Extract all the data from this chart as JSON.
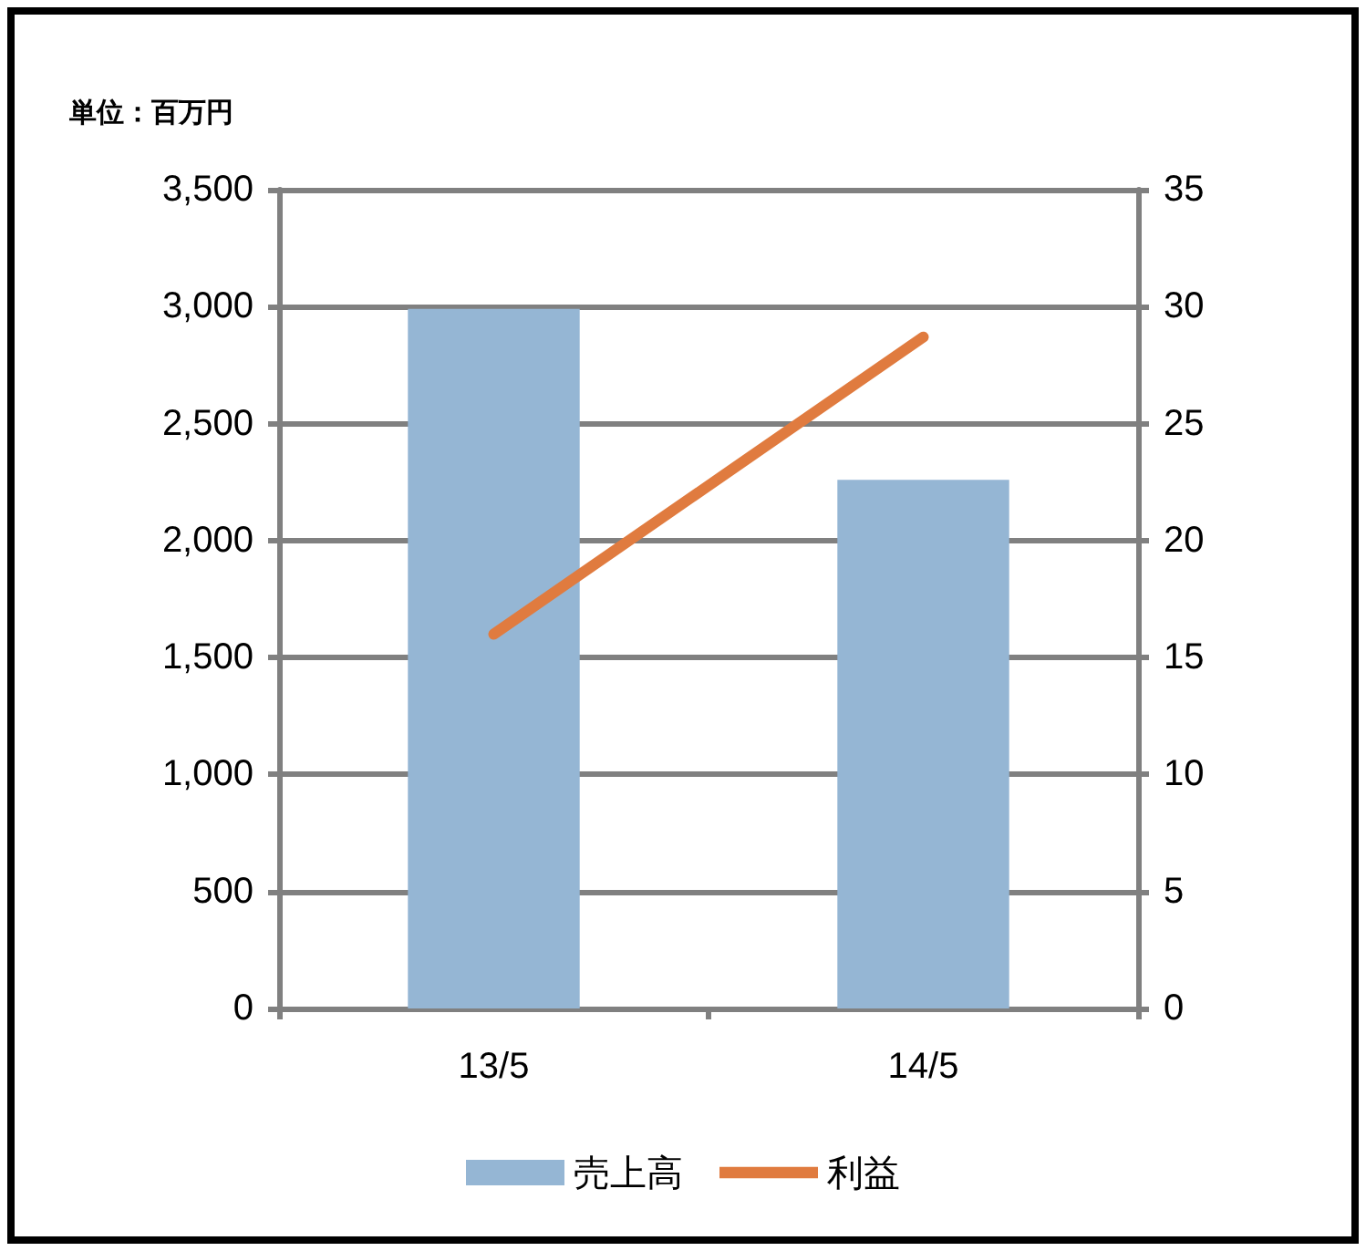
{
  "chart_data": {
    "type": "bar",
    "ylabel": "単位：百万円",
    "categories": [
      "13/5",
      "14/5"
    ],
    "series": [
      {
        "name": "売上高",
        "color": "#95b6d4",
        "values": [
          2990,
          2260
        ]
      },
      {
        "name": "利益",
        "type": "line",
        "axis": "y2",
        "color": "#e07b3f",
        "values": [
          16,
          28.7
        ]
      }
    ],
    "ylim": [
      0,
      3500
    ],
    "yticks": [
      {
        "value": 0,
        "label": "0"
      },
      {
        "value": 500,
        "label": "500"
      },
      {
        "value": 1000,
        "label": "1,000"
      },
      {
        "value": 1500,
        "label": "1,500"
      },
      {
        "value": 2000,
        "label": "2,000"
      },
      {
        "value": 2500,
        "label": "2,500"
      },
      {
        "value": 3000,
        "label": "3,000"
      },
      {
        "value": 3500,
        "label": "3,500"
      }
    ],
    "y2lim": [
      0,
      35
    ],
    "y2ticks": [
      0,
      5,
      10,
      15,
      20,
      25,
      30,
      35
    ],
    "grid": "y",
    "legend": "bottom",
    "marker": "none",
    "line_style": "solid"
  }
}
